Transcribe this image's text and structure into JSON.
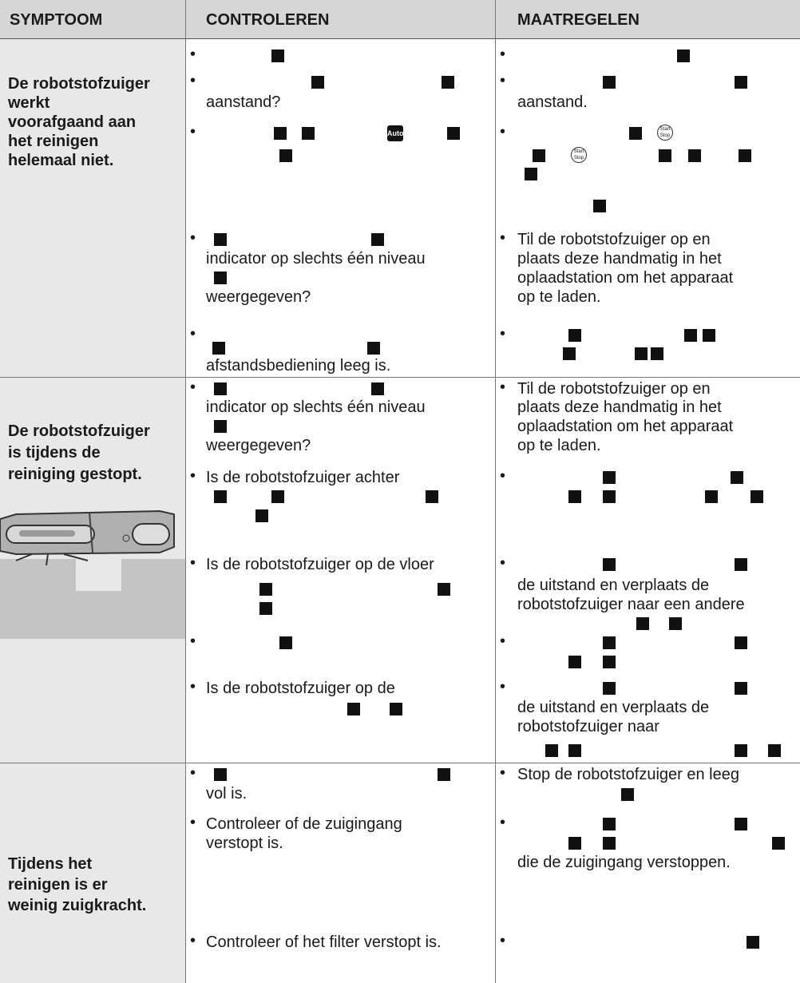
{
  "header": {
    "symptom": "SYMPTOOM",
    "check": "CONTROLEREN",
    "action": "MAATREGELEN"
  },
  "icons": {
    "auto": "Auto",
    "start": "Start",
    "stop": "Stop"
  },
  "rows": [
    {
      "symptom": [
        "De robotstofzuiger",
        "werkt",
        "voorafgaand aan",
        "het reinigen",
        "helemaal niet."
      ],
      "check": [
        "aanstand?",
        "indicator op slechts één niveau",
        "weergegeven?",
        "afstandsbediening leeg is."
      ],
      "action": [
        "aanstand.",
        "Til de robotstofzuiger op en",
        "plaats deze handmatig in het",
        "oplaadstation om het apparaat",
        "op te laden."
      ]
    },
    {
      "symptom": [
        "De robotstofzuiger",
        "is tijdens de",
        "reiniging gestopt."
      ],
      "check": [
        "indicator op slechts één niveau",
        "weergegeven?",
        "Is de robotstofzuiger achter",
        "Is de robotstofzuiger op de vloer",
        "Is de robotstofzuiger op de"
      ],
      "action": [
        "Til de robotstofzuiger op en",
        "plaats deze handmatig in het",
        "oplaadstation om het apparaat",
        "op te laden.",
        "de uitstand en verplaats de",
        "robotstofzuiger naar een andere",
        "de uitstand en verplaats de",
        "robotstofzuiger naar"
      ]
    },
    {
      "symptom": [
        "Tijdens het",
        "reinigen is er",
        "weinig zuigkracht."
      ],
      "check": [
        "vol is.",
        "Controleer of de zuigingang",
        "verstopt is.",
        "Controleer of het filter verstopt is."
      ],
      "action": [
        "Stop de robotstofzuiger en leeg",
        "die de zuigingang verstoppen."
      ]
    }
  ]
}
